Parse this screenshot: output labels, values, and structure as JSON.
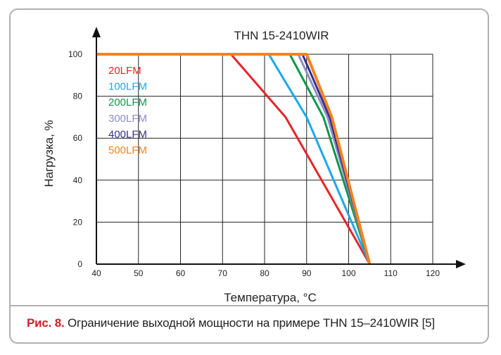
{
  "caption": {
    "label": "Рис. 8.",
    "text": " Ограничение выходной мощности на примере THN 15–2410WIR [5]"
  },
  "chart_data": {
    "type": "line",
    "title": "THN 15-2410WIR",
    "xlabel": "Температура, °C",
    "ylabel": "Нагрузка, %",
    "xlim": [
      40,
      120
    ],
    "ylim": [
      0,
      100
    ],
    "xticks": [
      40,
      50,
      60,
      70,
      80,
      90,
      100,
      110,
      120
    ],
    "yticks": [
      0,
      20,
      40,
      60,
      80,
      100
    ],
    "grid": true,
    "legend_position": "top-left",
    "series": [
      {
        "name": "20LFM",
        "color": "#e42528",
        "points": [
          [
            40,
            100
          ],
          [
            72,
            100
          ],
          [
            85,
            70
          ],
          [
            105,
            0
          ]
        ]
      },
      {
        "name": "100LFM",
        "color": "#1aa9e6",
        "points": [
          [
            40,
            100
          ],
          [
            81,
            100
          ],
          [
            90,
            70
          ],
          [
            105,
            0
          ]
        ]
      },
      {
        "name": "200LFM",
        "color": "#10964a",
        "points": [
          [
            40,
            100
          ],
          [
            86,
            100
          ],
          [
            94,
            70
          ],
          [
            105,
            0
          ]
        ]
      },
      {
        "name": "300LFM",
        "color": "#8d8cc8",
        "points": [
          [
            40,
            100
          ],
          [
            88,
            100
          ],
          [
            95,
            70
          ],
          [
            105,
            0
          ]
        ]
      },
      {
        "name": "400LFM",
        "color": "#34308a",
        "points": [
          [
            40,
            100
          ],
          [
            89,
            100
          ],
          [
            95.5,
            70
          ],
          [
            105,
            0
          ]
        ]
      },
      {
        "name": "500LFM",
        "color": "#f58220",
        "points": [
          [
            40,
            100
          ],
          [
            90,
            100
          ],
          [
            96,
            70
          ],
          [
            105,
            0
          ]
        ]
      }
    ]
  }
}
